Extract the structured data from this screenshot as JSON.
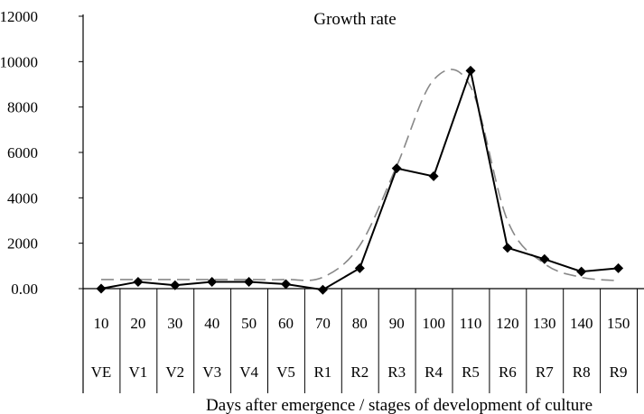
{
  "chart_data": {
    "type": "line",
    "title": "Growth rate",
    "xlabel": "Days after emergence / stages of development of culture",
    "ylabel": "",
    "ylim": [
      0,
      12000
    ],
    "yticks": [
      0,
      2000,
      4000,
      6000,
      8000,
      10000,
      12000
    ],
    "ytick_labels": [
      "0.00",
      "2000",
      "4000",
      "6000",
      "8000",
      "10000",
      "12000"
    ],
    "categories": [
      "10",
      "20",
      "30",
      "40",
      "50",
      "60",
      "70",
      "80",
      "90",
      "100",
      "110",
      "120",
      "130",
      "140",
      "150"
    ],
    "stages": [
      "VE",
      "V1",
      "V2",
      "V3",
      "V4",
      "V5",
      "R1",
      "R2",
      "R3",
      "R4",
      "R5",
      "R6",
      "R7",
      "R8",
      "R9"
    ],
    "grid": false,
    "series": [
      {
        "style": "solid-diamond",
        "color": "#000000",
        "values": [
          0,
          300,
          150,
          300,
          300,
          200,
          -50,
          900,
          5300,
          4950,
          9600,
          1800,
          1300,
          750,
          900
        ]
      },
      {
        "style": "dashed-fit",
        "color": "#888888",
        "values": [
          400,
          400,
          400,
          400,
          400,
          400,
          500,
          1900,
          5400,
          9200,
          8900,
          3000,
          1100,
          500,
          350
        ]
      }
    ]
  }
}
